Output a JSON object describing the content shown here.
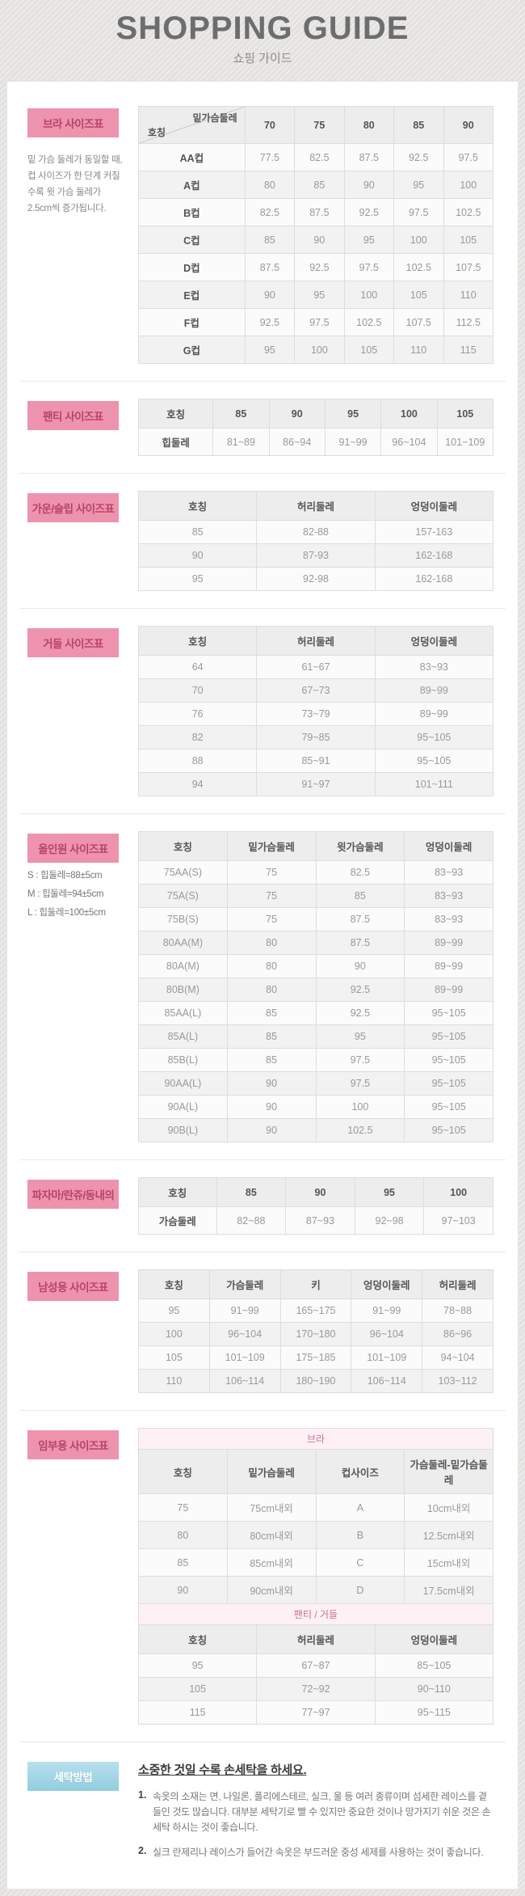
{
  "header": {
    "title": "SHOPPING GUIDE",
    "subtitle": "쇼핑 가이드"
  },
  "colors": {
    "section_label_bg": "#ee93ad",
    "section_label_text": "#b8436a",
    "washing_label_bg": "#93cde0",
    "washing_label_text": "#ffffff",
    "table_header_bg": "#ededed",
    "row_alt_bg": "#f2f2f2",
    "group_row_bg": "#fdf1f5",
    "group_row_text": "#d0708f"
  },
  "sections": [
    {
      "id": "bra",
      "label": "브라 사이즈표",
      "note": "밑 가슴 둘레가 동일할 때, 컵 사이즈가 한 단계 커질수록 윗 가슴 둘레가 2.5cm씩 증가됩니다.",
      "tables": [
        {
          "diagonal_header": {
            "top": "밑가슴둘레",
            "bottom": "호칭"
          },
          "columns": [
            "70",
            "75",
            "80",
            "85",
            "90"
          ],
          "rows": [
            [
              "AA컵",
              "77.5",
              "82.5",
              "87.5",
              "92.5",
              "97.5"
            ],
            [
              "A컵",
              "80",
              "85",
              "90",
              "95",
              "100"
            ],
            [
              "B컵",
              "82.5",
              "87.5",
              "92.5",
              "97.5",
              "102.5"
            ],
            [
              "C컵",
              "85",
              "90",
              "95",
              "100",
              "105"
            ],
            [
              "D컵",
              "87.5",
              "92.5",
              "97.5",
              "102.5",
              "107.5"
            ],
            [
              "E컵",
              "90",
              "95",
              "100",
              "105",
              "110"
            ],
            [
              "F컵",
              "92.5",
              "97.5",
              "102.5",
              "107.5",
              "112.5"
            ],
            [
              "G컵",
              "95",
              "100",
              "105",
              "110",
              "115"
            ]
          ]
        }
      ]
    },
    {
      "id": "panty",
      "label": "팬티 사이즈표",
      "tables": [
        {
          "columns": [
            "호칭",
            "85",
            "90",
            "95",
            "100",
            "105"
          ],
          "rows": [
            [
              "힙둘레",
              "81~89",
              "86~94",
              "91~99",
              "96~104",
              "101~109"
            ]
          ]
        }
      ]
    },
    {
      "id": "gown",
      "label": "가운/슬립 사이즈표",
      "tables": [
        {
          "columns": [
            "호칭",
            "허리둘레",
            "엉덩이둘레"
          ],
          "rows": [
            [
              "85",
              "82-88",
              "157-163"
            ],
            [
              "90",
              "87-93",
              "162-168"
            ],
            [
              "95",
              "92-98",
              "162-168"
            ]
          ]
        }
      ]
    },
    {
      "id": "girdle",
      "label": "거들 사이즈표",
      "tables": [
        {
          "columns": [
            "호칭",
            "허리둘레",
            "엉덩이둘레"
          ],
          "rows": [
            [
              "64",
              "61~67",
              "83~93"
            ],
            [
              "70",
              "67~73",
              "89~99"
            ],
            [
              "76",
              "73~79",
              "89~99"
            ],
            [
              "82",
              "79~85",
              "95~105"
            ],
            [
              "88",
              "85~91",
              "95~105"
            ],
            [
              "94",
              "91~97",
              "101~111"
            ]
          ]
        }
      ]
    },
    {
      "id": "allinone",
      "label": "올인원 사이즈표",
      "note_lines": [
        "S : 힙둘레=88±5cm",
        "M : 힙둘레=94±5cm",
        "L : 힙둘레=100±5cm"
      ],
      "tables": [
        {
          "columns": [
            "호칭",
            "밑가슴둘레",
            "윗가슴둘레",
            "엉덩이둘레"
          ],
          "rows": [
            [
              "75AA(S)",
              "75",
              "82.5",
              "83~93"
            ],
            [
              "75A(S)",
              "75",
              "85",
              "83~93"
            ],
            [
              "75B(S)",
              "75",
              "87.5",
              "83~93"
            ],
            [
              "80AA(M)",
              "80",
              "87.5",
              "89~99"
            ],
            [
              "80A(M)",
              "80",
              "90",
              "89~99"
            ],
            [
              "80B(M)",
              "80",
              "92.5",
              "89~99"
            ],
            [
              "85AA(L)",
              "85",
              "92.5",
              "95~105"
            ],
            [
              "85A(L)",
              "85",
              "95",
              "95~105"
            ],
            [
              "85B(L)",
              "85",
              "97.5",
              "95~105"
            ],
            [
              "90AA(L)",
              "90",
              "97.5",
              "95~105"
            ],
            [
              "90A(L)",
              "90",
              "100",
              "95~105"
            ],
            [
              "90B(L)",
              "90",
              "102.5",
              "95~105"
            ]
          ]
        }
      ]
    },
    {
      "id": "pajama",
      "label": "파자마/란쥬/동내의",
      "tables": [
        {
          "columns": [
            "호칭",
            "85",
            "90",
            "95",
            "100"
          ],
          "rows": [
            [
              "가슴둘레",
              "82~88",
              "87~93",
              "92~98",
              "97~103"
            ]
          ]
        }
      ]
    },
    {
      "id": "men",
      "label": "남성용 사이즈표",
      "tables": [
        {
          "columns": [
            "호칭",
            "가슴둘레",
            "키",
            "엉덩이둘레",
            "허리둘레"
          ],
          "rows": [
            [
              "95",
              "91~99",
              "165~175",
              "91~99",
              "78~88"
            ],
            [
              "100",
              "96~104",
              "170~180",
              "96~104",
              "86~96"
            ],
            [
              "105",
              "101~109",
              "175~185",
              "101~109",
              "94~104"
            ],
            [
              "110",
              "106~114",
              "180~190",
              "106~114",
              "103~112"
            ]
          ]
        }
      ]
    },
    {
      "id": "maternity",
      "label": "임부용 사이즈표",
      "tables": [
        {
          "group_title": "브라",
          "columns": [
            "호칭",
            "밑가슴둘레",
            "컵사이즈",
            "가슴둘레-밑가슴둘레"
          ],
          "rows": [
            [
              "75",
              "75cm내외",
              "A",
              "10cm내외"
            ],
            [
              "80",
              "80cm내외",
              "B",
              "12.5cm내외"
            ],
            [
              "85",
              "85cm내외",
              "C",
              "15cm내외"
            ],
            [
              "90",
              "90cm내외",
              "D",
              "17.5cm내외"
            ]
          ]
        },
        {
          "group_title": "팬티 / 거들",
          "columns": [
            "호칭",
            "허리둘레",
            "엉덩이둘레"
          ],
          "rows": [
            [
              "95",
              "67~87",
              "85~105"
            ],
            [
              "105",
              "72~92",
              "90~110"
            ],
            [
              "115",
              "77~97",
              "95~115"
            ]
          ]
        }
      ]
    },
    {
      "id": "washing",
      "label": "세탁방법",
      "label_style": "blue",
      "title": "소중한 것일 수록 손세탁을 하세요.",
      "items": [
        {
          "num": "1.",
          "text": "속옷의 소재는 면, 나일론, 폴리에스테르, 실크, 울 등 여러 종류이며 섬세한 레이스를 곁들인 것도 많습니다. 대부분 세탁기로 빨 수 있지만 중요한 것이나 망가지기 쉬운 것은 손세탁 하시는 것이 좋습니다."
        },
        {
          "num": "2.",
          "text": "실크 란제리나 레이스가 들어간 속옷은 부드러운 중성 세제를 사용하는 것이 좋습니다."
        }
      ]
    }
  ]
}
